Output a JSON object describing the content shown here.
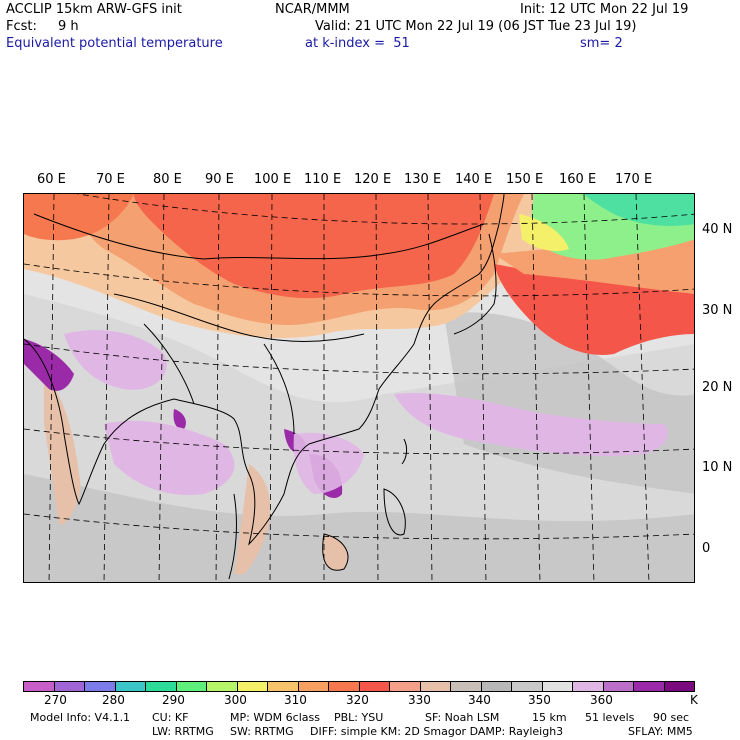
{
  "header": {
    "model": "ACCLIP 15km ARW-GFS init",
    "org": "NCAR/MMM",
    "init": "Init: 12 UTC Mon 22 Jul 19",
    "fcst_label": "Fcst:",
    "fcst_value": "9 h",
    "valid": "Valid: 21 UTC Mon 22 Jul 19 (06 JST Tue 23 Jul 19)",
    "field": "Equivalent potential temperature",
    "level": "at k-index =  51",
    "smooth": "sm= 2"
  },
  "map": {
    "lon_labels": [
      "60 E",
      "70 E",
      "80 E",
      "90 E",
      "100 E",
      "110 E",
      "120 E",
      "130 E",
      "140 E",
      "150 E",
      "160 E",
      "170 E"
    ],
    "lat_labels": [
      "40 N",
      "30 N",
      "20 N",
      "10 N",
      "0"
    ]
  },
  "colorbar": {
    "colors": [
      "#c85fc8",
      "#a066d8",
      "#7b7bea",
      "#3cc6c8",
      "#2edc9a",
      "#5ef07a",
      "#b6f46a",
      "#f4f06a",
      "#f6c26a",
      "#f7a062",
      "#f6784e",
      "#f4564a",
      "#f4a088",
      "#e6c0a8",
      "#c8c0b8",
      "#b8b8b8",
      "#c8c8c8",
      "#e2e2e2",
      "#e0b6e4",
      "#bb6fc8",
      "#9a2aa8",
      "#7a0a7e"
    ],
    "labels": [
      "270",
      "280",
      "290",
      "300",
      "310",
      "320",
      "330",
      "340",
      "350",
      "360",
      "K"
    ],
    "units": "K"
  },
  "footer": {
    "line1": [
      {
        "text": "Model Info: V4.1.1"
      },
      {
        "text": "CU: KF"
      },
      {
        "text": "MP: WDM 6class"
      },
      {
        "text": "PBL: YSU"
      },
      {
        "text": "SF: Noah LSM"
      },
      {
        "text": "15 km"
      },
      {
        "text": "51 levels"
      },
      {
        "text": "90 sec"
      }
    ],
    "line2": [
      {
        "text": "LW: RRTMG"
      },
      {
        "text": "SW: RRTMG"
      },
      {
        "text": "DIFF: simple KM: 2D Smagor DAMP: Rayleigh3"
      },
      {
        "text": "SFLAY: MM5"
      }
    ]
  }
}
